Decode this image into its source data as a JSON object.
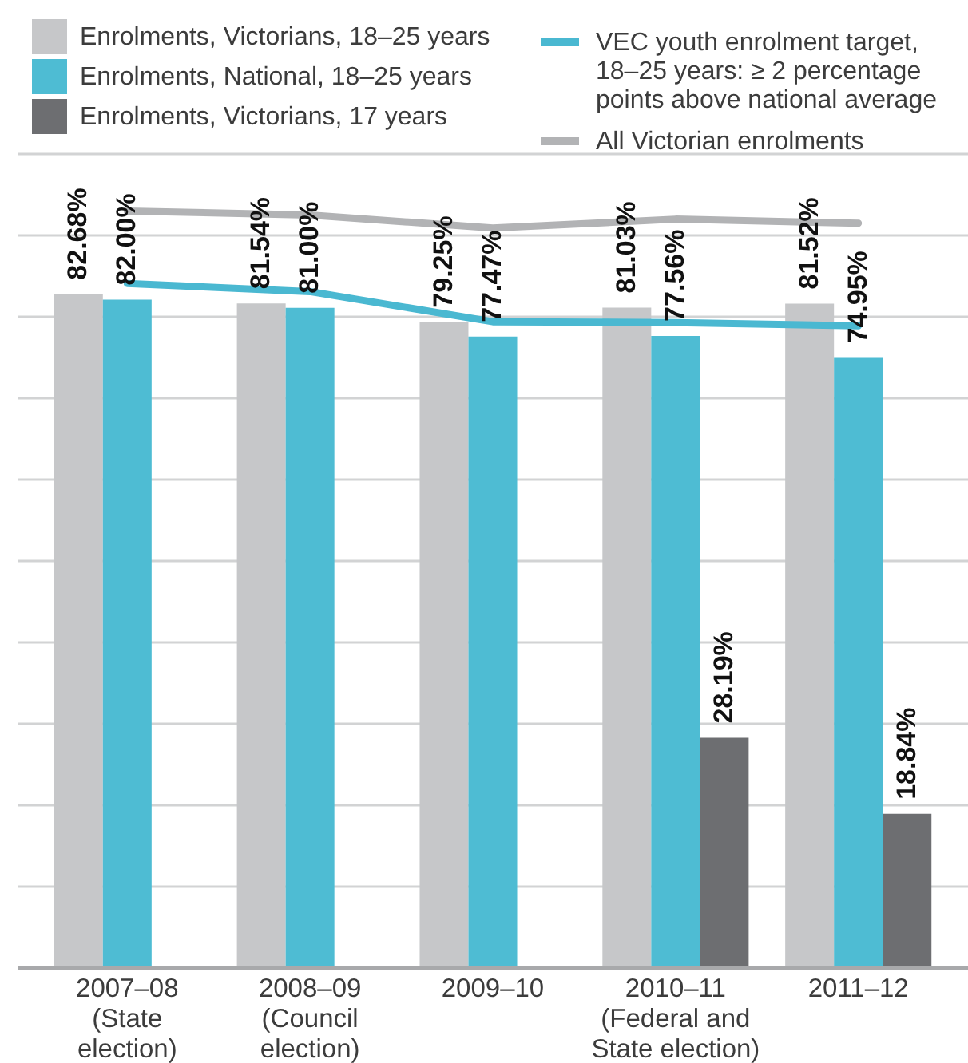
{
  "chart_data": {
    "type": "bar",
    "categories": [
      "2007–08 (State election)",
      "2008–09 (Council election)",
      "2009–10",
      "2010–11 (Federal and State election)",
      "2011–12"
    ],
    "series": [
      {
        "name": "Enrolments, Victorians, 18–25 years",
        "color": "#c6c7c9",
        "values": [
          82.68,
          81.54,
          79.25,
          81.03,
          81.52
        ],
        "value_labels": [
          "82.68%",
          "81.54%",
          "79.25%",
          "81.03%",
          "81.52%"
        ]
      },
      {
        "name": "Enrolments, National, 18–25 years",
        "color": "#4ebcd3",
        "values": [
          82.0,
          81.0,
          77.47,
          77.56,
          74.95
        ],
        "value_labels": [
          "82.00%",
          "81.00%",
          "77.47%",
          "77.56%",
          "74.95%"
        ]
      },
      {
        "name": "Enrolments, Victorians, 17 years",
        "color": "#6d6e71",
        "values": [
          null,
          null,
          null,
          28.19,
          18.84
        ],
        "value_labels": [
          null,
          null,
          null,
          "28.19%",
          "18.84%"
        ]
      },
      {
        "name": "VEC youth enrolment target, 18–25 years: ≥ 2 percentage points above national average",
        "type": "line",
        "color": "#4ab8d1",
        "values": [
          84,
          83,
          79.3,
          79.2,
          78.8
        ]
      },
      {
        "name": "All Victorian enrolments",
        "type": "line",
        "color": "#b2b3b5",
        "values": [
          92.9,
          92.4,
          90.8,
          91.9,
          91.4
        ]
      }
    ],
    "ylim": [
      0,
      100
    ],
    "yticks": [
      {
        "value": 0,
        "label": null
      },
      {
        "value": 10,
        "label": null
      },
      {
        "value": 20,
        "label": null
      },
      {
        "value": 30,
        "label": null
      },
      {
        "value": 40,
        "label": null
      },
      {
        "value": 50,
        "label": null
      },
      {
        "value": 60,
        "label": null
      },
      {
        "value": 70,
        "label": null
      },
      {
        "value": 80,
        "label": null
      },
      {
        "value": 90,
        "label": null
      },
      {
        "value": 100,
        "label": null
      }
    ],
    "grid": "y",
    "tick_labels": "x",
    "legend": "top"
  }
}
